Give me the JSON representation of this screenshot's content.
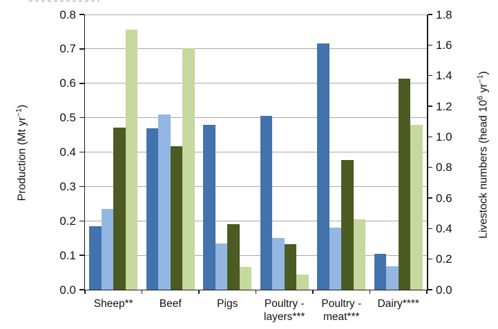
{
  "chart_data": {
    "type": "bar",
    "title": "",
    "categories": [
      "Sheep**",
      "Beef",
      "Pigs",
      "Poultry -\nlayers***",
      "Poultry -\nmeat***",
      "Dairy****"
    ],
    "series": [
      {
        "name": "dark-blue-bars",
        "axis": "left",
        "color": "#4273AC",
        "values": [
          0.185,
          0.47,
          0.48,
          0.505,
          0.715,
          0.105
        ]
      },
      {
        "name": "light-blue-bars",
        "axis": "left",
        "color": "#93B7E2",
        "values": [
          0.235,
          0.51,
          0.135,
          0.15,
          0.18,
          0.068
        ]
      },
      {
        "name": "dark-green-bars",
        "axis": "right",
        "color": "#4B5B21",
        "values": [
          1.06,
          0.94,
          0.43,
          0.3,
          0.85,
          1.38
        ]
      },
      {
        "name": "light-green-bars",
        "axis": "right",
        "color": "#C5D89E",
        "values": [
          1.7,
          1.58,
          0.15,
          0.1,
          0.46,
          1.08
        ]
      }
    ],
    "left_axis": {
      "label": "Production (Mt yr⁻¹)",
      "label_parts": {
        "pre": "Production (Mt yr",
        "sup": "−1",
        "post": ")"
      },
      "min": 0,
      "max": 0.8,
      "step": 0.1,
      "tick_labels": [
        "0.0",
        "0.1",
        "0.2",
        "0.3",
        "0.4",
        "0.5",
        "0.6",
        "0.7",
        "0.8"
      ]
    },
    "right_axis": {
      "label": "Livestock numbers (head 10⁶ yr⁻¹)",
      "label_parts": {
        "p1": "Livestock numbers (head 10",
        "s1": "6",
        "p2": " yr",
        "s2": "−1",
        "p3": ")"
      },
      "min": 0,
      "max": 1.8,
      "step": 0.2,
      "tick_labels": [
        "0.0",
        "0.2",
        "0.4",
        "0.6",
        "0.8",
        "1.0",
        "1.2",
        "1.4",
        "1.6",
        "1.8"
      ]
    },
    "grid": true,
    "gridline_color": "#a8a8a8",
    "axis_color": "#1a1a1a"
  }
}
